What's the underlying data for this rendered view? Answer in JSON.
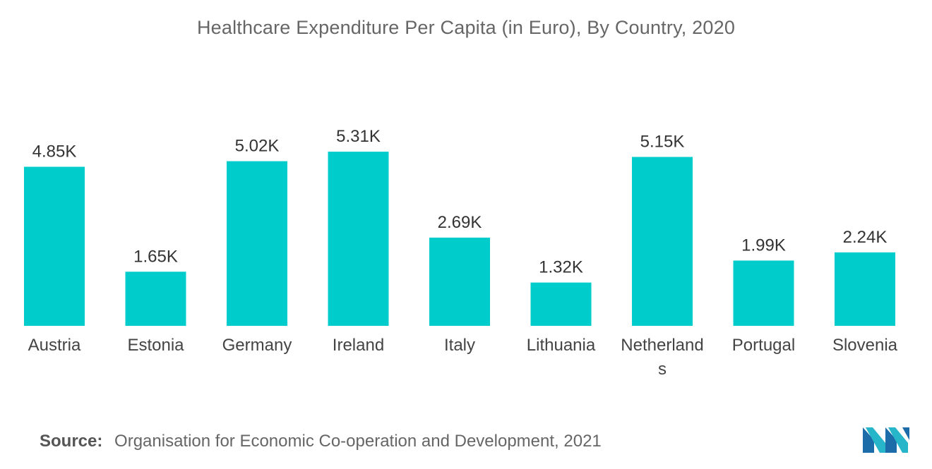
{
  "chart_data": {
    "type": "bar",
    "title": "Healthcare Expenditure Per Capita (in Euro), By Country, 2020",
    "categories": [
      "Austria",
      "Estonia",
      "Germany",
      "Ireland",
      "Italy",
      "Lithuania",
      "Netherlands",
      "Portugal",
      "Slovenia"
    ],
    "values": [
      4.85,
      1.65,
      5.02,
      5.31,
      2.69,
      1.32,
      5.15,
      1.99,
      2.24
    ],
    "value_labels": [
      "4.85K",
      "1.65K",
      "5.02K",
      "5.31K",
      "2.69K",
      "1.32K",
      "5.15K",
      "1.99K",
      "2.24K"
    ],
    "unit": "thousand euro",
    "xlabel": "",
    "ylabel": "",
    "ylim": [
      0,
      6
    ],
    "grid": false,
    "legend": "none",
    "bar_color": "#00CCCC"
  },
  "source": {
    "label": "Source:",
    "text": "Organisation for Economic Co-operation and Development, 2021"
  },
  "logo": {
    "icon": "mordor-intelligence-logo-icon",
    "colors": [
      "#1B6CA8",
      "#27B5C9"
    ]
  }
}
